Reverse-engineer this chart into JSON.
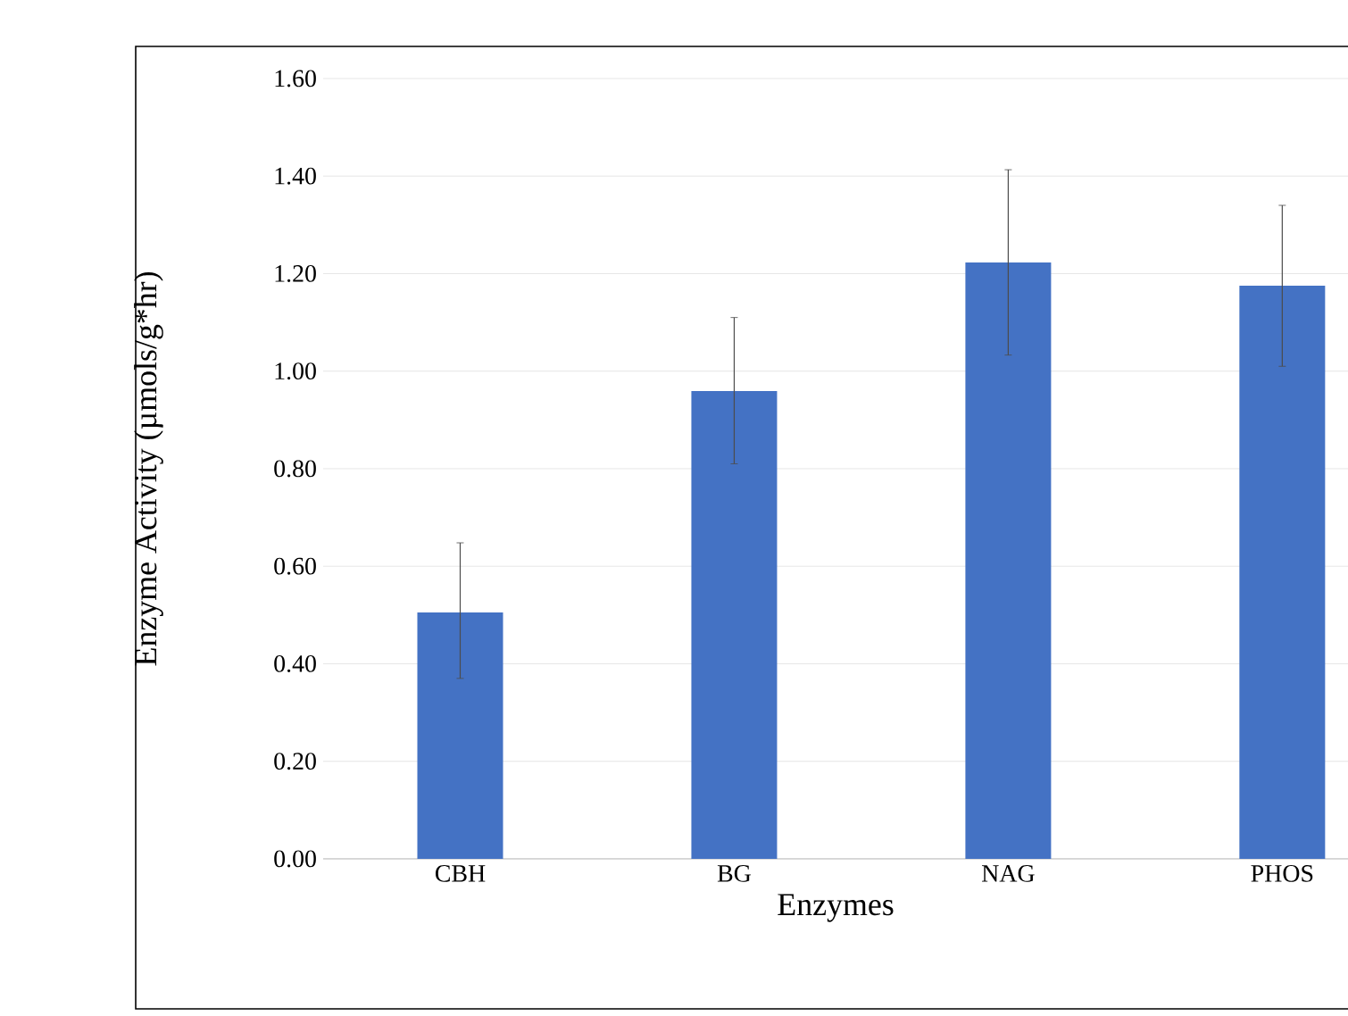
{
  "chart_data": {
    "type": "bar",
    "xlabel": "Enzymes",
    "ylabel": "Enzyme Activity (µmols/g*hr)",
    "categories": [
      "CBH",
      "BG",
      "NAG",
      "PHOS"
    ],
    "values": [
      0.505,
      0.959,
      1.223,
      1.175
    ],
    "errors": [
      [
        0.37,
        0.648
      ],
      [
        0.81,
        1.11
      ],
      [
        1.033,
        1.413
      ],
      [
        1.01,
        1.34
      ]
    ],
    "color": "#4472c4",
    "ylim": [
      0,
      1.6
    ],
    "yticks": [
      {
        "value": 0,
        "label": "0.00"
      },
      {
        "value": 0.2,
        "label": "0.20"
      },
      {
        "value": 0.4,
        "label": "0.40"
      },
      {
        "value": 0.6,
        "label": "0.60"
      },
      {
        "value": 0.8,
        "label": "0.80"
      },
      {
        "value": 1.0,
        "label": "1.00"
      },
      {
        "value": 1.2,
        "label": "1.20"
      },
      {
        "value": 1.4,
        "label": "1.40"
      },
      {
        "value": 1.6,
        "label": "1.60"
      }
    ],
    "grid": "y"
  }
}
